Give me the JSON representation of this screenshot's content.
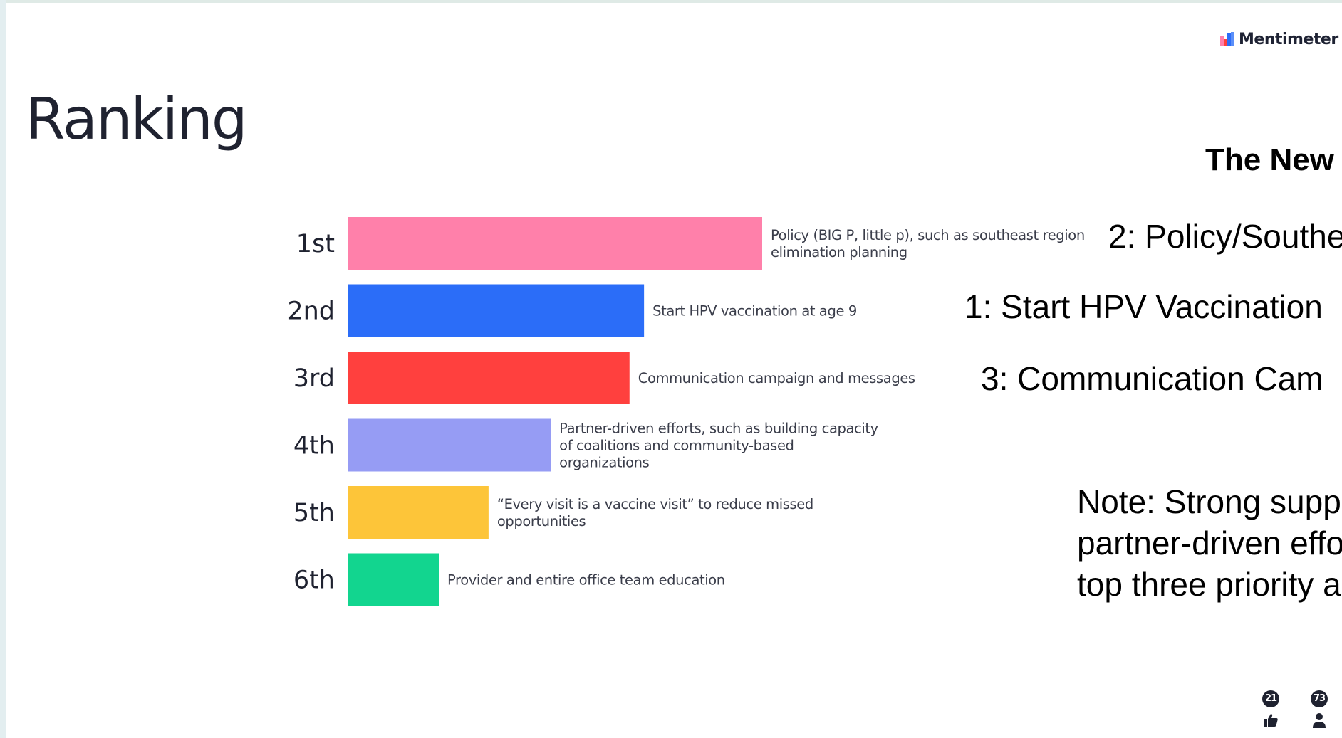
{
  "brand": {
    "name": "Mentimeter"
  },
  "slide": {
    "title": "Ranking"
  },
  "chart_data": {
    "type": "bar",
    "orientation": "horizontal",
    "categories": [
      "1st",
      "2nd",
      "3rd",
      "4th",
      "5th",
      "6th"
    ],
    "items": [
      {
        "rank": "1st",
        "label_lines": [
          "Policy (BIG P, little p), such as southeast region",
          "elimination planning"
        ],
        "color": "#ff80aa",
        "score": 100
      },
      {
        "rank": "2nd",
        "label_lines": [
          "Start HPV vaccination at age 9"
        ],
        "color": "#2b6df8",
        "score": 71.5
      },
      {
        "rank": "3rd",
        "label_lines": [
          "Communication campaign and messages"
        ],
        "color": "#ff403e",
        "score": 68
      },
      {
        "rank": "4th",
        "label_lines": [
          "Partner-driven efforts, such as building capacity",
          "of coalitions and community-based",
          "organizations"
        ],
        "color": "#969cf4",
        "score": 49
      },
      {
        "rank": "5th",
        "label_lines": [
          "“Every visit is a vaccine visit” to reduce missed",
          "opportunities"
        ],
        "color": "#fdc539",
        "score": 34
      },
      {
        "rank": "6th",
        "label_lines": [
          "Provider and entire office team education"
        ],
        "color": "#12d58f",
        "score": 22
      }
    ]
  },
  "notes": {
    "heading": "The New",
    "lines": [
      "2: Policy/Southe",
      "1: Start HPV Vaccination",
      "3: Communication Cam"
    ],
    "paragraph_lines": [
      "Note: Strong supp",
      "partner-driven effo",
      "top three priority a"
    ]
  },
  "reactions": [
    {
      "name": "likes",
      "count": "21",
      "icon": "thumbs-up-icon"
    },
    {
      "name": "participants",
      "count": "73",
      "icon": "person-icon"
    }
  ]
}
